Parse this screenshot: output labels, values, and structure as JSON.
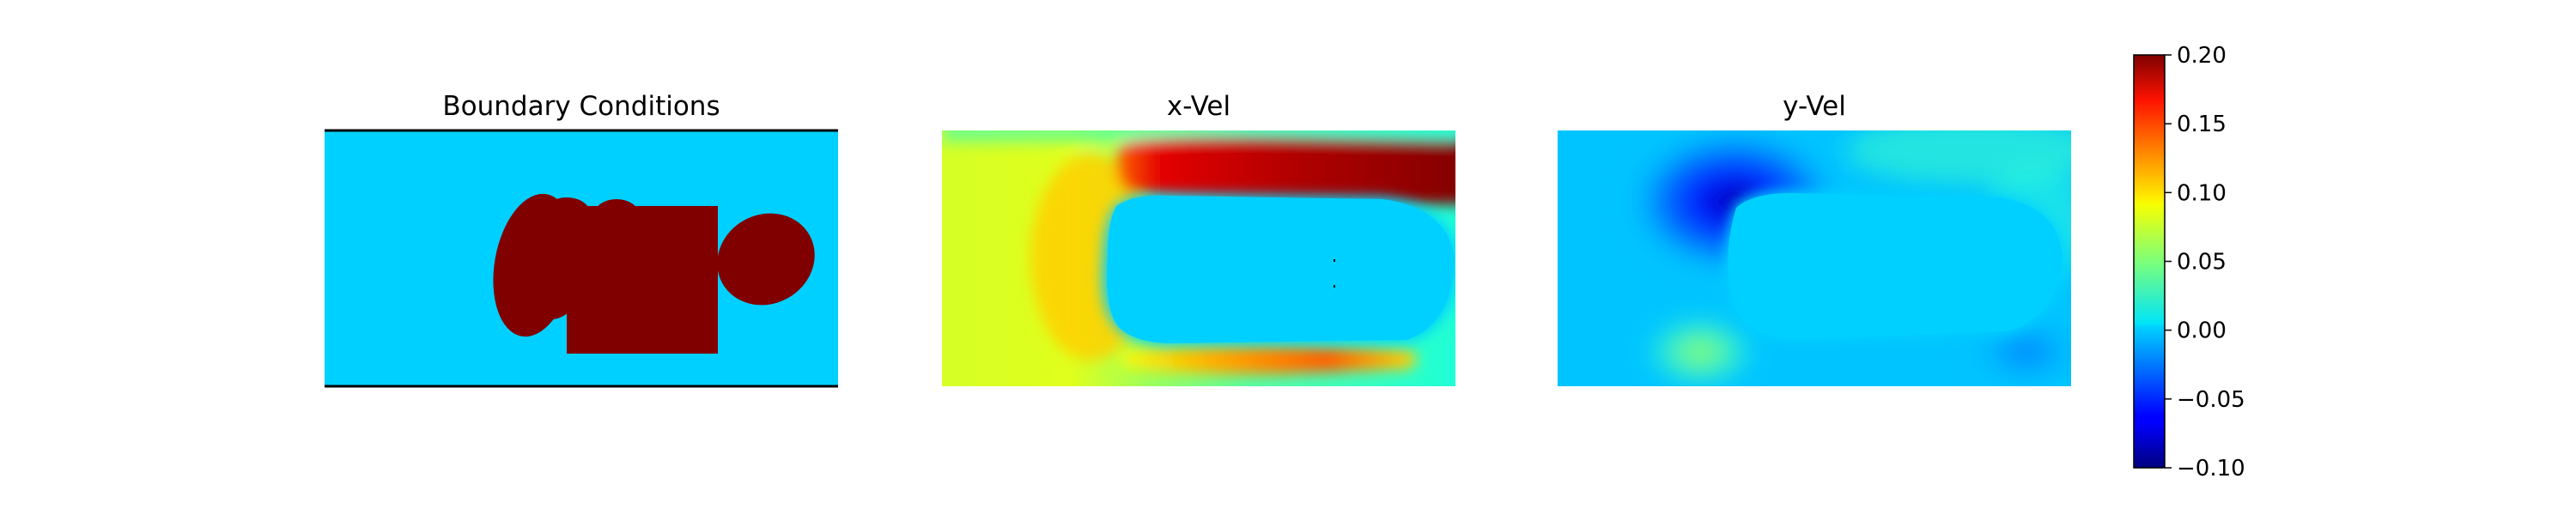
{
  "chart_data": {
    "type": "heatmap",
    "colormap": "jet",
    "panels": [
      {
        "title": "Boundary Conditions"
      },
      {
        "title": "x-Vel"
      },
      {
        "title": "y-Vel"
      }
    ],
    "colorbar": {
      "range": [
        -0.1,
        0.2
      ],
      "ticks": [
        0.2,
        0.15,
        0.1,
        0.05,
        0.0,
        -0.05,
        -0.1
      ],
      "tick_labels": [
        "0.20",
        "0.15",
        "0.10",
        "0.05",
        "0.00",
        "−0.05",
        "−0.10"
      ]
    }
  },
  "colors": {
    "fluid": "#00d0ff",
    "obstacle": "#800000",
    "wall": "#000000"
  }
}
